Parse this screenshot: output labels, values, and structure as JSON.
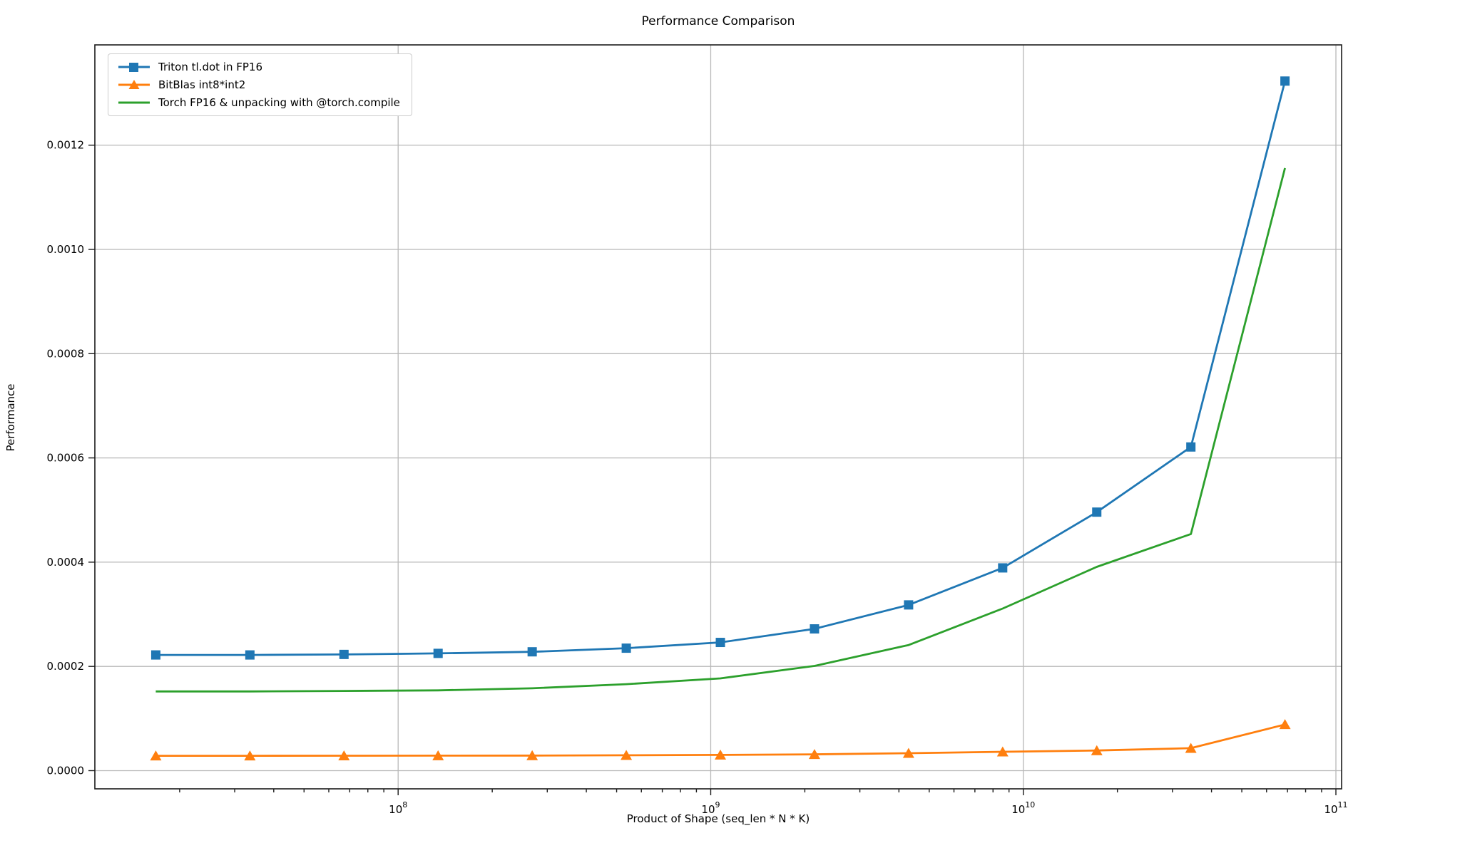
{
  "title": "Performance Comparison",
  "chart_data": {
    "type": "line",
    "title": "Performance Comparison",
    "xlabel": "Product of Shape (seq_len * N * K)",
    "ylabel": "Performance",
    "x_scale": "log",
    "grid": true,
    "legend_position": "upper left",
    "xlim": [
      10710000,
      104290000000
    ],
    "ylim": [
      -3.49e-05,
      0.0013924
    ],
    "x_tick_base": "10",
    "x_tick_exponents": [
      8,
      9,
      10,
      11
    ],
    "y_ticks": [
      0.0,
      0.0002,
      0.0004,
      0.0006,
      0.0008,
      0.001,
      0.0012
    ],
    "y_tick_labels": [
      "0.0000",
      "0.0002",
      "0.0004",
      "0.0006",
      "0.0008",
      "0.0010",
      "0.0012"
    ],
    "x": [
      16777216,
      33554432,
      67108864,
      134217728,
      268435456,
      536870912,
      1073741824,
      2147483648,
      4294967296,
      8589934592,
      17179869184,
      34359738368,
      68719476736
    ],
    "series": [
      {
        "name": "Triton tl.dot in FP16",
        "color": "#1f77b4",
        "marker": "square",
        "values": [
          0.000222,
          0.000222,
          0.000223,
          0.000225,
          0.000228,
          0.000235,
          0.000246,
          0.000272,
          0.000318,
          0.000389,
          0.000496,
          0.000621,
          0.001323
        ]
      },
      {
        "name": "BitBlas int8*int2",
        "color": "#ff7f0e",
        "marker": "triangle",
        "values": [
          2.85e-05,
          2.85e-05,
          2.87e-05,
          2.88e-05,
          2.9e-05,
          2.95e-05,
          3.02e-05,
          3.13e-05,
          3.35e-05,
          3.62e-05,
          3.86e-05,
          4.31e-05,
          8.86e-05
        ]
      },
      {
        "name": "Torch FP16 & unpacking with @torch.compile",
        "color": "#2ca02c",
        "marker": "none",
        "values": [
          0.000152,
          0.000152,
          0.000153,
          0.000154,
          0.000158,
          0.000166,
          0.000177,
          0.000201,
          0.000241,
          0.000311,
          0.000391,
          0.000454,
          0.001156
        ]
      }
    ],
    "colors": {
      "grid": "#b8b8b8",
      "spine": "#1a1a1a",
      "tick": "#1a1a1a",
      "background": "#ffffff"
    }
  }
}
